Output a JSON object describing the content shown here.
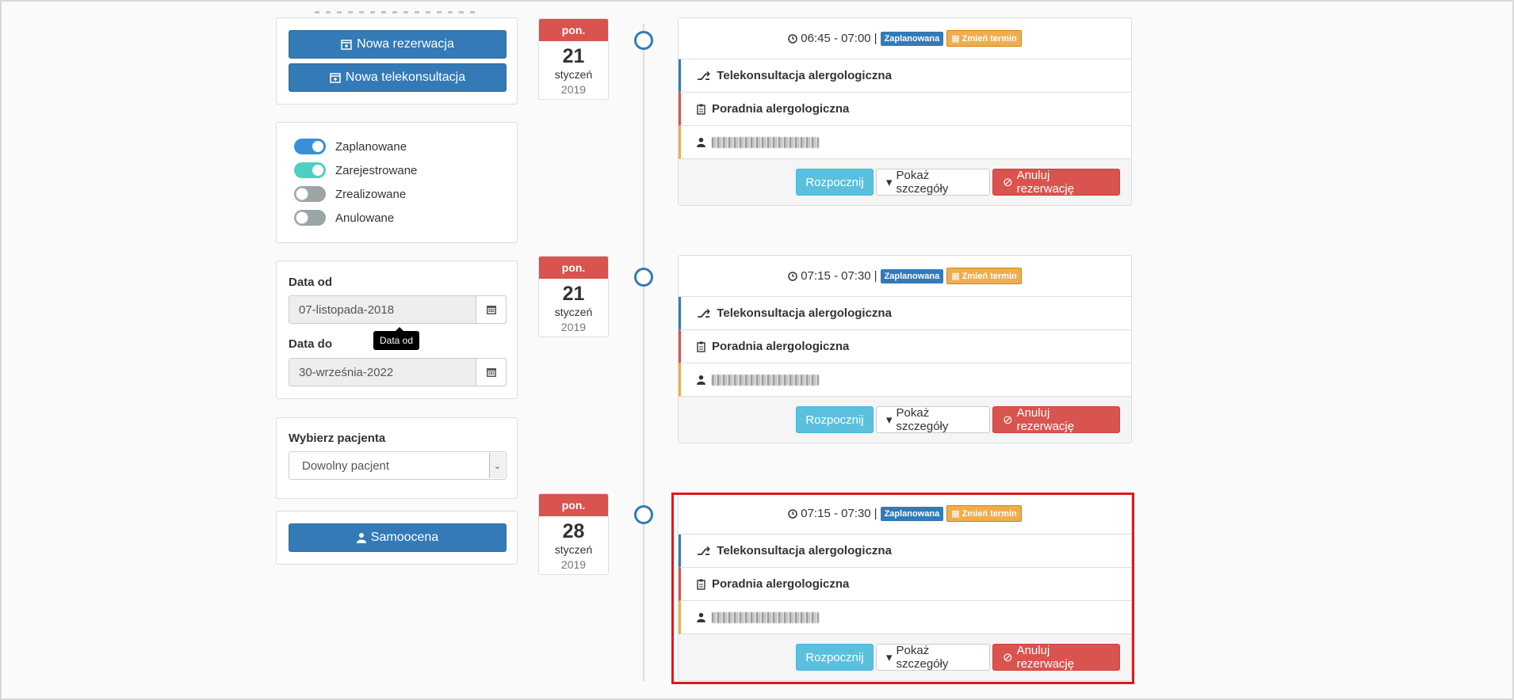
{
  "actions": {
    "new_reservation": "Nowa rezerwacja",
    "new_teleconsultation": "Nowa telekonsultacja"
  },
  "filters": [
    {
      "label": "Zaplanowane",
      "on": true,
      "color": "#3a8fd9"
    },
    {
      "label": "Zarejestrowane",
      "on": true,
      "color": "#4fcfc4"
    },
    {
      "label": "Zrealizowane",
      "on": false,
      "color": "#9aa5a5"
    },
    {
      "label": "Anulowane",
      "on": false,
      "color": "#9aa5a5"
    }
  ],
  "date_range": {
    "from_label": "Data od",
    "from_value": "07-listopada-2018",
    "to_label": "Data do",
    "to_value": "30-września-2022",
    "tooltip": "Data od"
  },
  "patient": {
    "label": "Wybierz pacjenta",
    "selected": "Dowolny pacjent"
  },
  "self_assessment": "Samoocena",
  "appointments": [
    {
      "dow": "pon.",
      "day": "21",
      "month": "styczeń",
      "year": "2019",
      "time": "06:45 - 07:00",
      "separator": "|",
      "status": "Zaplanowana",
      "reschedule": "Zmień termin",
      "type": "Telekonsultacja alergologiczna",
      "clinic": "Poradnia alergologiczna",
      "start": "Rozpocznij",
      "details": "Pokaż szczegóły",
      "cancel": "Anuluj rezerwację"
    },
    {
      "dow": "pon.",
      "day": "21",
      "month": "styczeń",
      "year": "2019",
      "time": "07:15 - 07:30",
      "separator": "|",
      "status": "Zaplanowana",
      "reschedule": "Zmień termin",
      "type": "Telekonsultacja alergologiczna",
      "clinic": "Poradnia alergologiczna",
      "start": "Rozpocznij",
      "details": "Pokaż szczegóły",
      "cancel": "Anuluj rezerwację"
    },
    {
      "dow": "pon.",
      "day": "28",
      "month": "styczeń",
      "year": "2019",
      "time": "07:15 - 07:30",
      "separator": "|",
      "status": "Zaplanowana",
      "reschedule": "Zmień termin",
      "type": "Telekonsultacja alergologiczna",
      "clinic": "Poradnia alergologiczna",
      "start": "Rozpocznij",
      "details": "Pokaż szczegóły",
      "cancel": "Anuluj rezerwację"
    }
  ],
  "colors": {
    "primary": "#337ab7",
    "danger": "#d9534f",
    "info": "#5bc0de",
    "warning": "#f0ad4e",
    "highlight": "#e4161b"
  }
}
